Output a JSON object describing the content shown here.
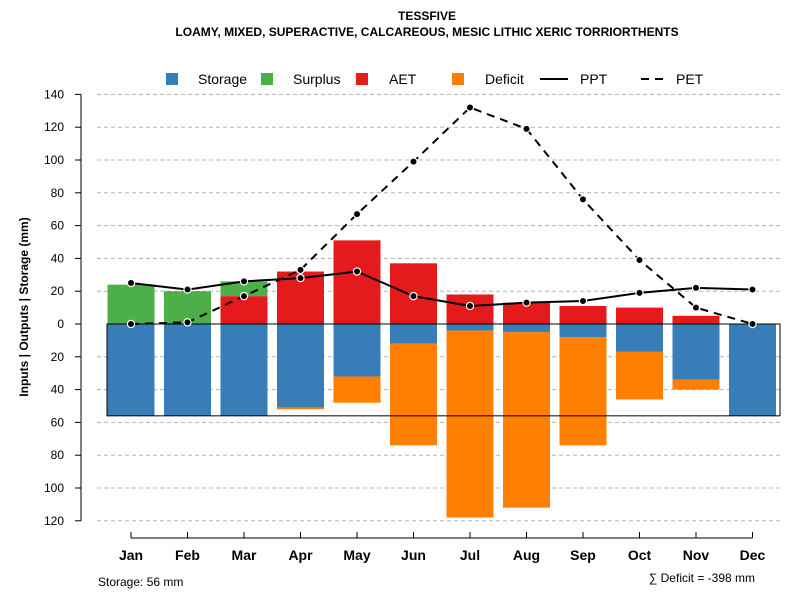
{
  "chart_data": {
    "type": "bar",
    "title": "TESSFIVE",
    "subtitle": "LOAMY, MIXED, SUPERACTIVE, CALCAREOUS, MESIC LITHIC XERIC TORRIORTHENTS",
    "ylabel": "Inputs | Outputs | Storage    (mm)",
    "ylim": [
      -120,
      140
    ],
    "yticks_above": [
      0,
      20,
      40,
      60,
      80,
      100,
      120,
      140
    ],
    "yticks_below": [
      20,
      40,
      60,
      80,
      100,
      120
    ],
    "grid": true,
    "legend": {
      "position": "top",
      "entries": [
        {
          "name": "Storage",
          "kind": "box",
          "color": "#377EB8"
        },
        {
          "name": "Surplus",
          "kind": "box",
          "color": "#4DAF4A"
        },
        {
          "name": "AET",
          "kind": "box",
          "color": "#E41A1C"
        },
        {
          "name": "Deficit",
          "kind": "box",
          "color": "#FF7F00"
        },
        {
          "name": "PPT",
          "kind": "line-solid",
          "color": "#000000"
        },
        {
          "name": "PET",
          "kind": "line-dashed",
          "color": "#000000"
        }
      ]
    },
    "categories": [
      "Jan",
      "Feb",
      "Mar",
      "Apr",
      "May",
      "Jun",
      "Jul",
      "Aug",
      "Sep",
      "Oct",
      "Nov",
      "Dec"
    ],
    "series": [
      {
        "name": "Storage",
        "values": [
          56,
          56,
          56,
          51,
          32,
          12,
          4,
          5,
          8,
          17,
          34,
          56
        ]
      },
      {
        "name": "Deficit",
        "values": [
          0,
          0,
          0,
          1,
          16,
          62,
          114,
          107,
          66,
          29,
          6,
          0
        ]
      },
      {
        "name": "AET",
        "values": [
          0,
          0,
          17,
          32,
          51,
          37,
          18,
          13,
          11,
          10,
          5,
          0
        ]
      },
      {
        "name": "Surplus",
        "values": [
          24,
          20,
          9,
          0,
          0,
          0,
          0,
          0,
          0,
          0,
          0,
          0
        ]
      },
      {
        "name": "PPT",
        "values": [
          25,
          21,
          26,
          28,
          32,
          17,
          11,
          13,
          14,
          19,
          22,
          21
        ]
      },
      {
        "name": "PET",
        "values": [
          0,
          1,
          17,
          33,
          67,
          99,
          132,
          119,
          76,
          39,
          10,
          0
        ]
      }
    ],
    "storage_capacity": 56,
    "footer_left": "Storage: 56 mm",
    "footer_right": "∑ Deficit = -398 mm"
  }
}
